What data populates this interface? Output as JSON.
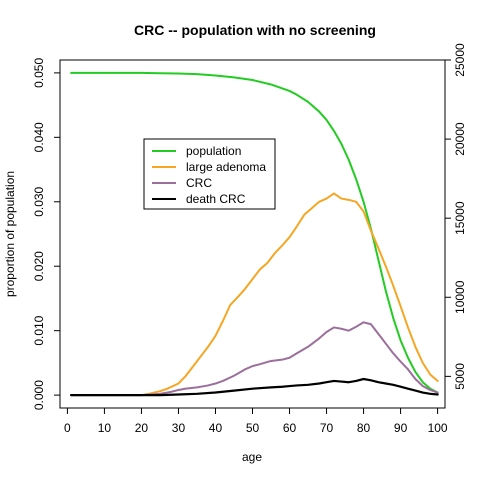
{
  "chart_data": {
    "type": "line",
    "title": "CRC -- population with no screening",
    "xlabel": "age",
    "ylabel": "proportion of population",
    "xlim": [
      -2,
      102
    ],
    "ylim": [
      -0.002,
      0.052
    ],
    "xticks": [
      0,
      10,
      20,
      30,
      40,
      50,
      60,
      70,
      80,
      90,
      100
    ],
    "yticks": [
      0.0,
      0.01,
      0.02,
      0.03,
      0.04,
      0.05
    ],
    "ytick_labels": [
      "0.000",
      "0.010",
      "0.020",
      "0.030",
      "0.040",
      "0.050"
    ],
    "right_axis": {
      "ticks": [
        5000,
        10000,
        15000,
        20000,
        25000
      ],
      "tick_labels": [
        "5000",
        "10000",
        "15000",
        "20000",
        "25000"
      ],
      "range": [
        3000,
        25000
      ]
    },
    "legend_position": "upper-center-left",
    "series": [
      {
        "name": "population",
        "color": "#22cc22",
        "x": [
          1,
          5,
          10,
          15,
          20,
          25,
          30,
          35,
          40,
          45,
          50,
          55,
          60,
          62,
          65,
          68,
          70,
          72,
          74,
          76,
          78,
          80,
          82,
          84,
          86,
          88,
          90,
          92,
          94,
          96,
          98,
          100
        ],
        "y": [
          0.05,
          0.05,
          0.05,
          0.05,
          0.05,
          0.04995,
          0.0499,
          0.0498,
          0.0496,
          0.0493,
          0.0489,
          0.0482,
          0.0472,
          0.0466,
          0.0455,
          0.044,
          0.0427,
          0.041,
          0.039,
          0.0365,
          0.0335,
          0.03,
          0.0258,
          0.021,
          0.0162,
          0.012,
          0.0085,
          0.0058,
          0.0036,
          0.002,
          0.001,
          0.0004
        ]
      },
      {
        "name": "large adenoma",
        "color": "#f5a623",
        "x": [
          1,
          5,
          10,
          15,
          20,
          22,
          25,
          27,
          30,
          32,
          34,
          36,
          38,
          40,
          42,
          44,
          46,
          48,
          50,
          52,
          54,
          56,
          58,
          60,
          62,
          64,
          66,
          68,
          70,
          72,
          74,
          76,
          78,
          80,
          82,
          84,
          86,
          88,
          90,
          92,
          94,
          96,
          98,
          100
        ],
        "y": [
          0.0,
          0.0,
          0.0,
          0.0,
          0.0,
          0.0002,
          0.0006,
          0.001,
          0.0018,
          0.003,
          0.0045,
          0.006,
          0.0075,
          0.0092,
          0.0115,
          0.014,
          0.0152,
          0.0165,
          0.018,
          0.0195,
          0.0205,
          0.022,
          0.0232,
          0.0245,
          0.0262,
          0.028,
          0.029,
          0.03,
          0.0305,
          0.0313,
          0.0305,
          0.0303,
          0.03,
          0.0285,
          0.0255,
          0.0228,
          0.02,
          0.017,
          0.0138,
          0.0105,
          0.0075,
          0.005,
          0.0032,
          0.0022
        ]
      },
      {
        "name": "CRC",
        "color": "#9b6f9b",
        "x": [
          1,
          5,
          10,
          15,
          20,
          25,
          28,
          30,
          32,
          35,
          38,
          40,
          42,
          45,
          48,
          50,
          52,
          55,
          58,
          60,
          62,
          65,
          68,
          70,
          72,
          74,
          76,
          78,
          80,
          82,
          84,
          86,
          88,
          90,
          92,
          94,
          96,
          98,
          100
        ],
        "y": [
          0.0,
          0.0,
          0.0,
          0.0,
          0.0,
          0.0002,
          0.0005,
          0.0008,
          0.001,
          0.0012,
          0.0015,
          0.0018,
          0.0022,
          0.003,
          0.004,
          0.0045,
          0.0048,
          0.0053,
          0.0055,
          0.0058,
          0.0065,
          0.0075,
          0.0088,
          0.0098,
          0.0105,
          0.0103,
          0.01,
          0.0106,
          0.0113,
          0.011,
          0.0095,
          0.008,
          0.0065,
          0.0052,
          0.004,
          0.0025,
          0.0014,
          0.0008,
          0.0004
        ]
      },
      {
        "name": "death CRC",
        "color": "#000000",
        "x": [
          1,
          5,
          10,
          15,
          20,
          25,
          30,
          35,
          40,
          45,
          50,
          55,
          58,
          60,
          62,
          65,
          68,
          70,
          72,
          74,
          76,
          78,
          80,
          82,
          84,
          86,
          88,
          90,
          92,
          94,
          96,
          98,
          100
        ],
        "y": [
          0.0,
          0.0,
          0.0,
          0.0,
          0.0,
          0.0,
          0.0001,
          0.0002,
          0.0004,
          0.0007,
          0.001,
          0.0012,
          0.0013,
          0.0014,
          0.0015,
          0.0016,
          0.0018,
          0.002,
          0.0022,
          0.0021,
          0.002,
          0.0022,
          0.0025,
          0.0023,
          0.002,
          0.0018,
          0.0016,
          0.0013,
          0.001,
          0.0007,
          0.0004,
          0.0002,
          0.0001
        ]
      }
    ]
  }
}
